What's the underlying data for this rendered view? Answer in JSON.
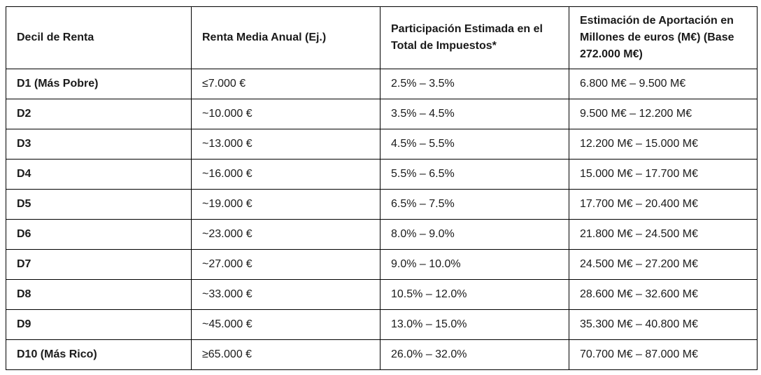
{
  "colors": {
    "background": "#ffffff",
    "border": "#000000",
    "text": "#1a1a1a"
  },
  "chart_data": {
    "type": "table",
    "columns": [
      "Decil de Renta",
      "Renta Media Anual (Ej.)",
      "Participación Estimada en el Total de Impuestos*",
      "Estimación de Aportación en Millones de euros (M€) (Base 272.000 M€)"
    ],
    "rows": [
      [
        "D1 (Más Pobre)",
        "≤7.000 €",
        "2.5% – 3.5%",
        "6.800 M€ – 9.500 M€"
      ],
      [
        "D2",
        "~10.000 €",
        "3.5% – 4.5%",
        "9.500 M€ – 12.200 M€"
      ],
      [
        "D3",
        "~13.000 €",
        "4.5% – 5.5%",
        "12.200 M€ – 15.000 M€"
      ],
      [
        "D4",
        "~16.000 €",
        "5.5% – 6.5%",
        "15.000 M€ – 17.700 M€"
      ],
      [
        "D5",
        "~19.000 €",
        "6.5% – 7.5%",
        "17.700 M€ – 20.400 M€"
      ],
      [
        "D6",
        "~23.000 €",
        "8.0% – 9.0%",
        "21.800 M€ – 24.500 M€"
      ],
      [
        "D7",
        "~27.000 €",
        "9.0% – 10.0%",
        "24.500 M€ – 27.200 M€"
      ],
      [
        "D8",
        "~33.000 €",
        "10.5% – 12.0%",
        "28.600 M€ – 32.600 M€"
      ],
      [
        "D9",
        "~45.000 €",
        "13.0% – 15.0%",
        "35.300 M€ – 40.800 M€"
      ],
      [
        "D10 (Más Rico)",
        "≥65.000 €",
        "26.0% – 32.0%",
        "70.700 M€ – 87.000 M€"
      ]
    ],
    "base_total": "272.000 M€",
    "notes": "Asterisk on column 3 header refers to an estimation footnote (not visible in image)"
  }
}
